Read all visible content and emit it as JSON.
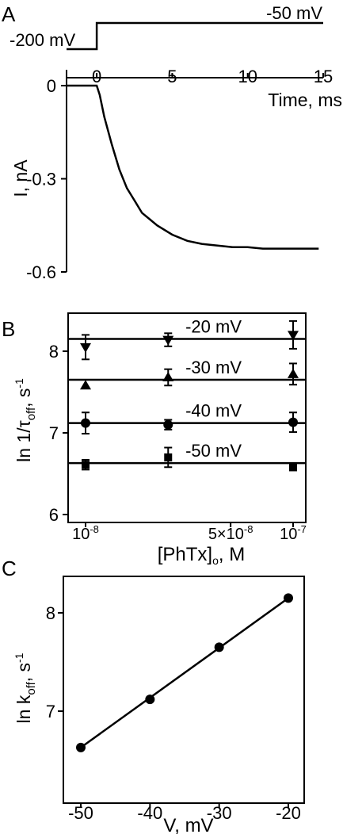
{
  "panels": {
    "a_letter": "A",
    "b_letter": "B",
    "c_letter": "C"
  },
  "chart_data": [
    {
      "panel": "A",
      "type": "line",
      "protocol": {
        "hold_label": "-200 mV",
        "step_label": "-50 mV",
        "step_time_ms": 0
      },
      "xlabel": "Time, ms",
      "ylabel": "I, nA",
      "xlim": [
        -2,
        15
      ],
      "ylim": [
        -0.6,
        0.05
      ],
      "xticks": [
        0,
        5,
        10,
        15
      ],
      "xtick_labels": [
        "0",
        "5",
        "10",
        "15"
      ],
      "yticks": [
        0,
        -0.3,
        -0.6
      ],
      "ytick_labels": [
        "0",
        "-0.3",
        "-0.6"
      ],
      "grid": false,
      "series": [
        {
          "x": [
            -2,
            -1.5,
            -1,
            -0.5,
            0,
            0.2,
            0.5,
            1,
            1.5,
            2,
            2.5,
            3,
            3.5,
            4,
            5,
            6,
            7,
            8,
            9,
            10,
            11,
            12,
            13,
            14,
            14.7
          ],
          "y": [
            0,
            0,
            0,
            0,
            0,
            -0.03,
            -0.1,
            -0.19,
            -0.27,
            -0.33,
            -0.37,
            -0.41,
            -0.43,
            -0.45,
            -0.48,
            -0.5,
            -0.51,
            -0.515,
            -0.52,
            -0.52,
            -0.525,
            -0.525,
            -0.525,
            -0.525,
            -0.525
          ]
        }
      ]
    },
    {
      "panel": "B",
      "type": "scatter",
      "xlabel": "[PhTx]o, M",
      "ylabel": "ln 1/τoff, s-1",
      "xlim": [
        8e-09,
        1.08e-07
      ],
      "ylim": [
        6,
        8.35
      ],
      "xticks": [
        1e-08,
        5e-08,
        1e-07
      ],
      "xtick_labels": [
        "10-8",
        "5×10-8",
        "10-7"
      ],
      "yticks": [
        6,
        7,
        8
      ],
      "ytick_labels": [
        "6",
        "7",
        "8"
      ],
      "grid": false,
      "series": [
        {
          "name": "-20 mV",
          "marker": "triangle-down",
          "fit": 8.15,
          "x": [
            1e-08,
            2.5e-08,
            1e-07
          ],
          "y": [
            8.05,
            8.14,
            8.2
          ],
          "err": [
            0.15,
            0.08,
            0.17
          ]
        },
        {
          "name": "-30 mV",
          "marker": "triangle-up",
          "fit": 7.65,
          "x": [
            1e-08,
            2.5e-08,
            1e-07
          ],
          "y": [
            7.58,
            7.68,
            7.72
          ],
          "err": [
            0.0,
            0.1,
            0.13
          ]
        },
        {
          "name": "-40 mV",
          "marker": "circle",
          "fit": 7.12,
          "x": [
            1e-08,
            2.5e-08,
            1e-07
          ],
          "y": [
            7.12,
            7.1,
            7.13
          ],
          "err": [
            0.13,
            0.06,
            0.12
          ]
        },
        {
          "name": "-50 mV",
          "marker": "square",
          "fit": 6.63,
          "x": [
            1e-08,
            2.5e-08,
            1e-07
          ],
          "y": [
            6.61,
            6.7,
            6.58
          ],
          "err": [
            0.06,
            0.12,
            0.04
          ]
        }
      ]
    },
    {
      "panel": "C",
      "type": "scatter",
      "xlabel": "V, mV",
      "ylabel": "ln koff, s-1",
      "xlim": [
        -52.5,
        -17
      ],
      "ylim": [
        6.4,
        8.3
      ],
      "xticks": [
        -50,
        -40,
        -30,
        -20
      ],
      "xtick_labels": [
        "-50",
        "-40",
        "-30",
        "-20"
      ],
      "yticks": [
        7,
        8
      ],
      "ytick_labels": [
        "7",
        "8"
      ],
      "grid": false,
      "series": [
        {
          "x": [
            -50,
            -40,
            -30,
            -20
          ],
          "y": [
            6.63,
            7.12,
            7.65,
            8.15
          ],
          "fit": {
            "x": [
              -50,
              -20
            ],
            "y": [
              6.63,
              8.15
            ]
          }
        }
      ]
    }
  ]
}
